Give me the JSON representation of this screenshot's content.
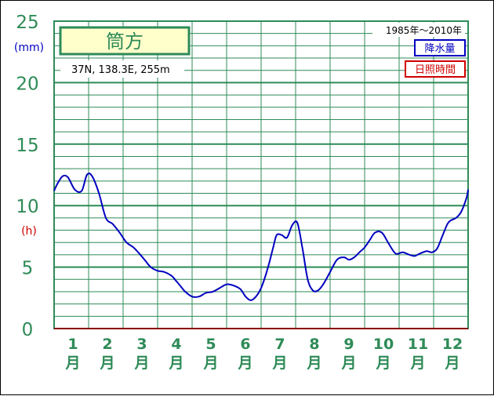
{
  "chart_data": {
    "type": "line",
    "title": "筒方",
    "station_info": "37N, 138.3E, 255m",
    "period": "1985年〜2010年",
    "legend": [
      {
        "label": "降水量",
        "color": "#0000c0"
      },
      {
        "label": "日照時間",
        "color": "#d00000"
      }
    ],
    "y_unit_top": "(mm)",
    "y_unit_mid": "(h)",
    "y_ticks": [
      0,
      5,
      10,
      15,
      20,
      25
    ],
    "ylim": [
      0,
      25
    ],
    "xlim": [
      0.5,
      12.5
    ],
    "categories": [
      "1月",
      "2月",
      "3月",
      "4月",
      "5月",
      "6月",
      "7月",
      "8月",
      "9月",
      "10月",
      "11月",
      "12月"
    ],
    "grid": true,
    "series": [
      {
        "name": "降水量",
        "color": "#0000c0",
        "x": [
          0.5,
          0.6,
          0.75,
          0.9,
          1.1,
          1.3,
          1.45,
          1.6,
          1.8,
          2.0,
          2.2,
          2.4,
          2.6,
          2.8,
          3.0,
          3.15,
          3.3,
          3.5,
          3.7,
          3.9,
          4.0,
          4.15,
          4.3,
          4.5,
          4.7,
          4.9,
          5.1,
          5.3,
          5.5,
          5.7,
          5.9,
          6.05,
          6.2,
          6.35,
          6.5,
          6.65,
          6.75,
          6.85,
          6.95,
          7.1,
          7.25,
          7.4,
          7.55,
          7.7,
          7.85,
          8.0,
          8.15,
          8.3,
          8.5,
          8.7,
          8.9,
          9.05,
          9.2,
          9.35,
          9.5,
          9.65,
          9.8,
          10.0,
          10.2,
          10.4,
          10.6,
          10.8,
          10.95,
          11.1,
          11.3,
          11.45,
          11.6,
          11.75,
          11.9,
          12.0,
          12.15,
          12.3,
          12.45,
          12.5
        ],
        "values": [
          11.2,
          11.8,
          12.4,
          12.3,
          11.3,
          11.2,
          12.5,
          12.4,
          11.0,
          9.0,
          8.5,
          7.8,
          7.0,
          6.6,
          6.0,
          5.5,
          5.0,
          4.7,
          4.6,
          4.3,
          4.0,
          3.5,
          3.0,
          2.6,
          2.6,
          2.9,
          3.0,
          3.3,
          3.6,
          3.5,
          3.2,
          2.6,
          2.3,
          2.6,
          3.3,
          4.5,
          5.5,
          6.6,
          7.6,
          7.6,
          7.4,
          8.4,
          8.6,
          6.5,
          4.0,
          3.1,
          3.1,
          3.6,
          4.6,
          5.6,
          5.8,
          5.6,
          5.8,
          6.2,
          6.6,
          7.2,
          7.8,
          7.8,
          6.9,
          6.1,
          6.2,
          6.0,
          5.9,
          6.1,
          6.3,
          6.2,
          6.5,
          7.5,
          8.5,
          8.8,
          9.0,
          9.5,
          10.6,
          11.3
        ]
      }
    ]
  }
}
